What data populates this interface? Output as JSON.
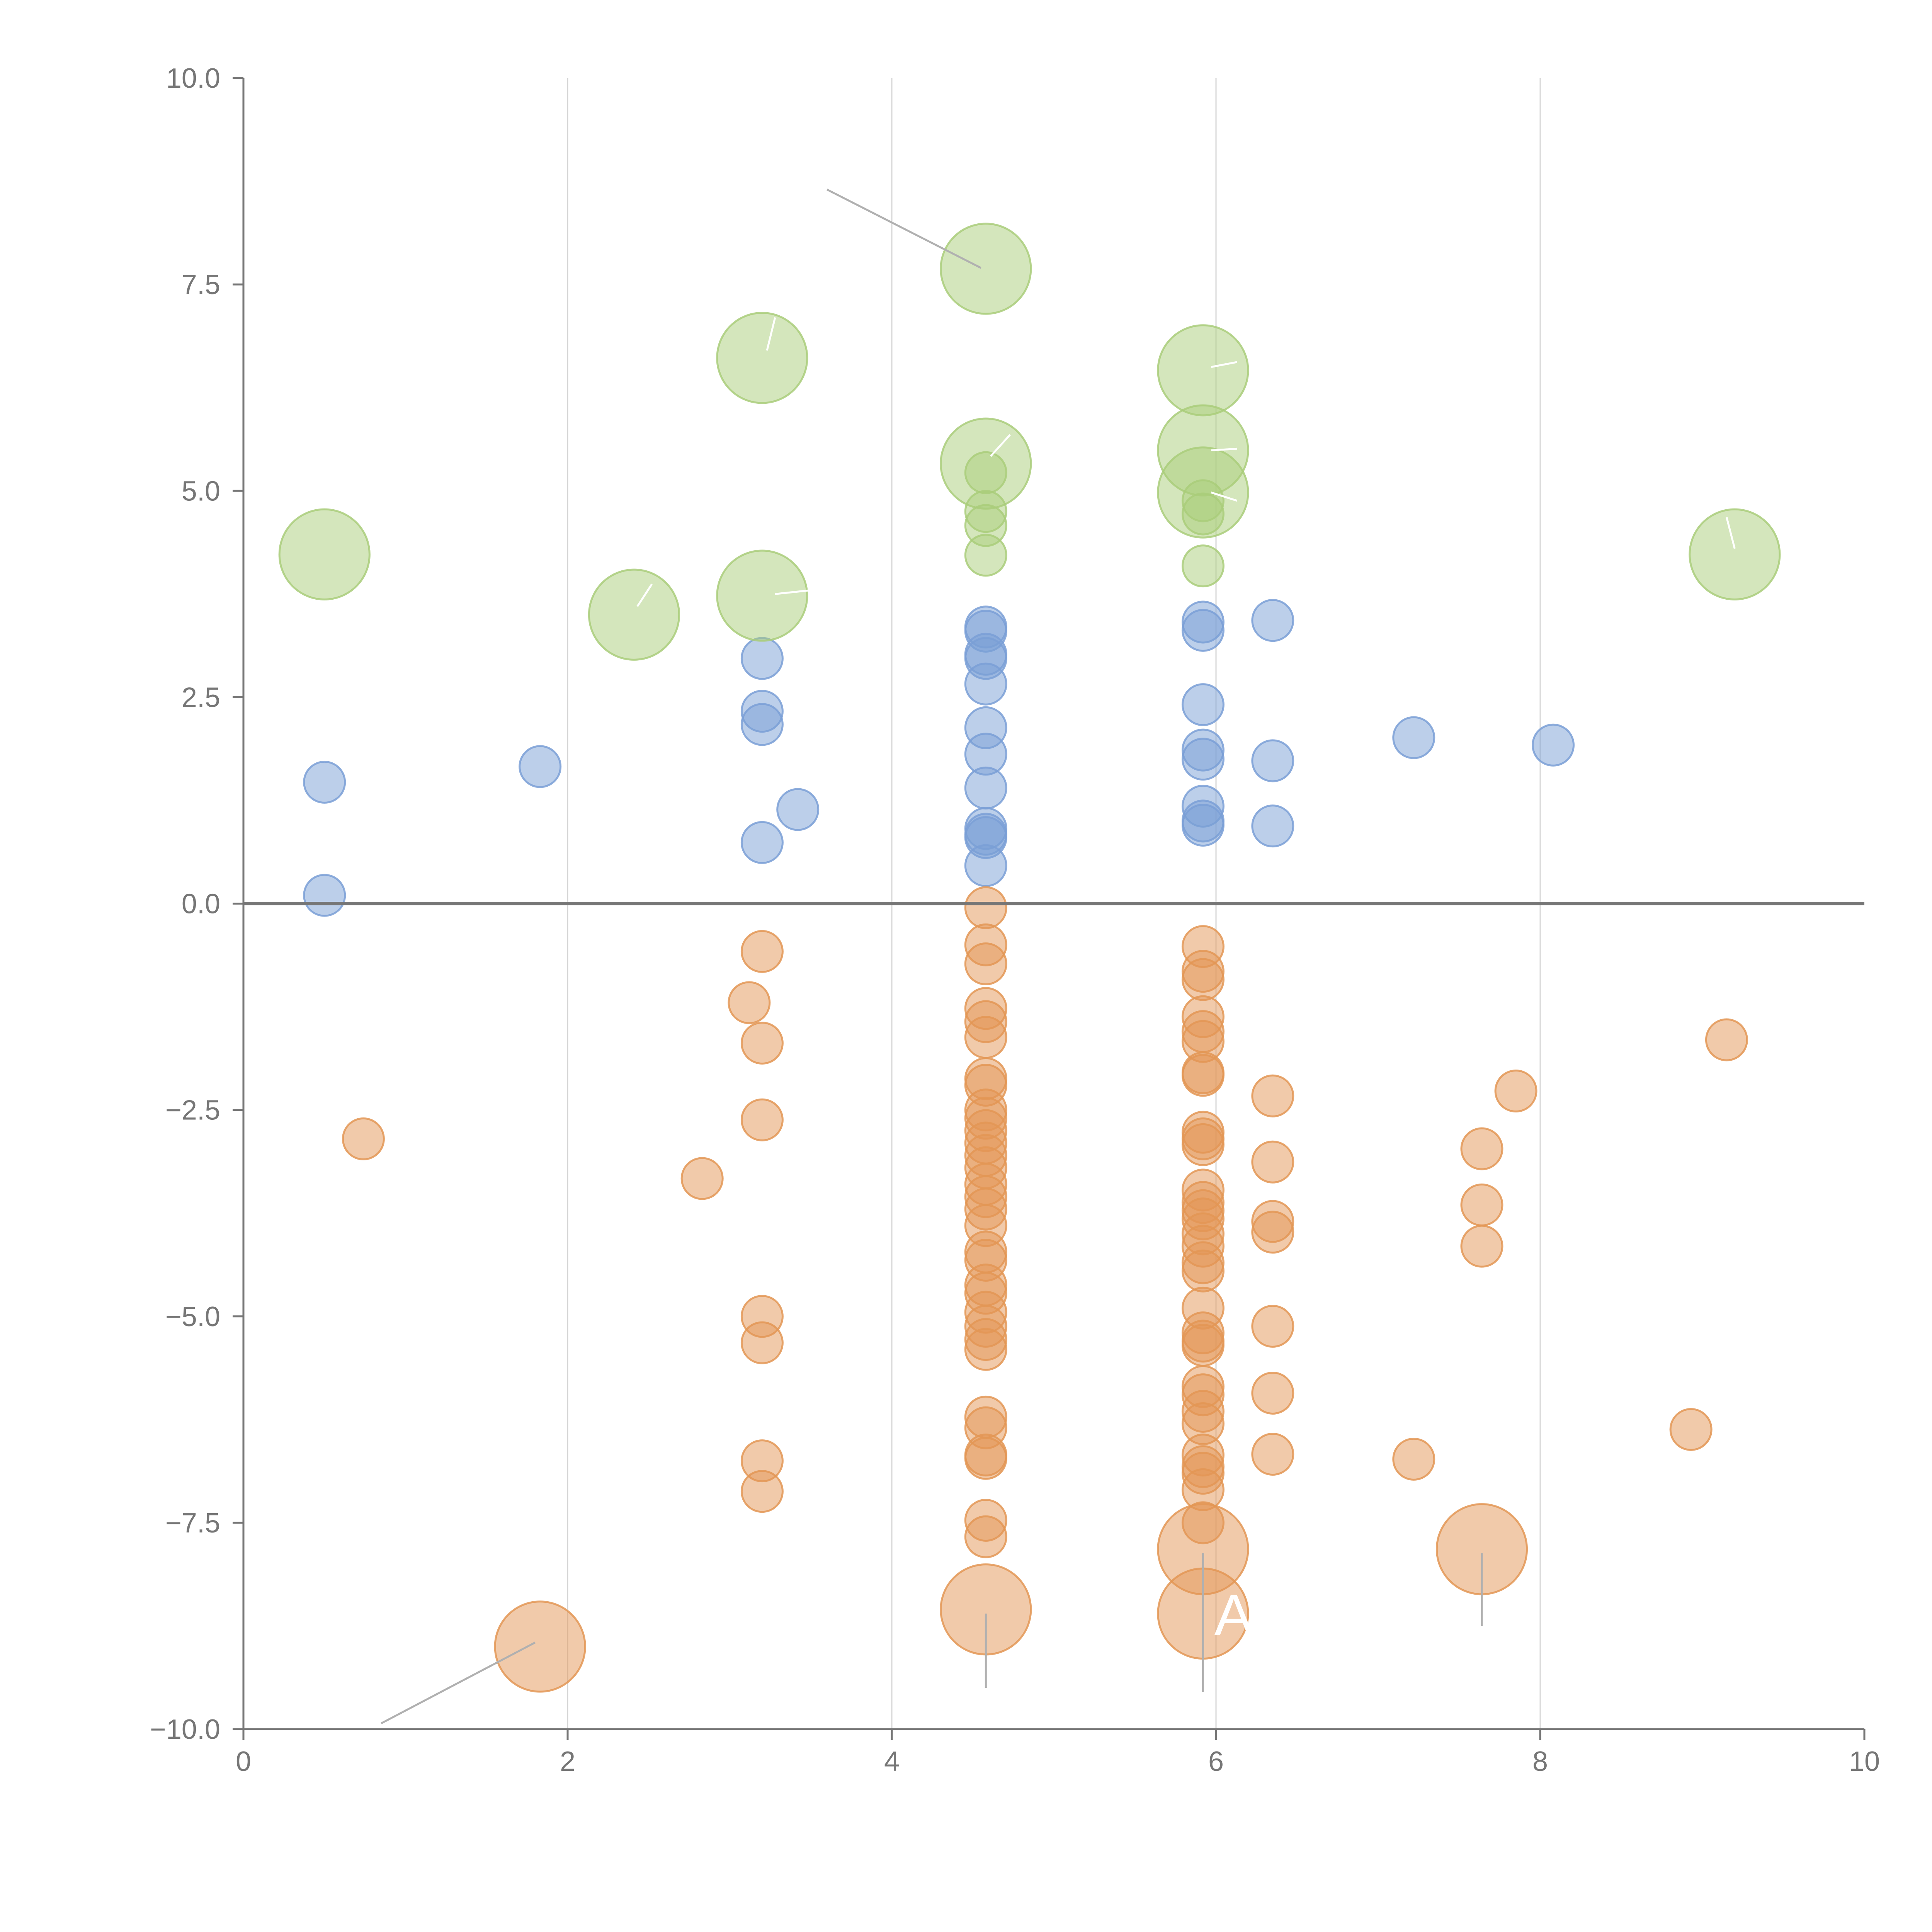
{
  "chart_data": {
    "type": "scatter",
    "title": "",
    "xlabel": "",
    "ylabel": "",
    "xlim": [
      0,
      10
    ],
    "ylim": [
      -10,
      10
    ],
    "x_ticks": [
      0,
      2,
      4,
      6,
      8,
      10
    ],
    "x_tick_labels": [
      "0",
      "2",
      "4",
      "6",
      "8",
      "10"
    ],
    "y_ticks": [
      10,
      7.5,
      5,
      2.5,
      0,
      -2.5,
      -5,
      -7.5,
      -10
    ],
    "y_tick_labels": [
      "10.0",
      "7.5",
      "5.0",
      "2.5",
      "0.0",
      "−2.5",
      "−5.0",
      "−7.5",
      "−10.0"
    ],
    "x_grid": [
      2,
      4,
      6,
      8
    ],
    "zero_line": 0,
    "colors": {
      "blue": "#7a9fd6",
      "orange": "#e39655",
      "green": "#a9cd7a",
      "axis": "#767676",
      "grid": "#d6d6d6",
      "annotation": "#ffffff",
      "leader": "#b0b0b0"
    },
    "series": [
      {
        "name": "blue",
        "color_key": "blue",
        "size": 1,
        "points": [
          [
            0.5,
            1.47
          ],
          [
            0.5,
            0.1
          ],
          [
            1.83,
            1.66
          ],
          [
            3.2,
            2.97
          ],
          [
            3.2,
            2.33
          ],
          [
            3.2,
            2.17
          ],
          [
            3.2,
            0.74
          ],
          [
            3.42,
            1.14
          ],
          [
            4.58,
            3.35
          ],
          [
            4.58,
            3.3
          ],
          [
            4.58,
            3.02
          ],
          [
            4.58,
            2.97
          ],
          [
            4.58,
            2.66
          ],
          [
            4.58,
            2.13
          ],
          [
            4.58,
            1.81
          ],
          [
            4.58,
            1.4
          ],
          [
            4.58,
            0.91
          ],
          [
            4.58,
            0.84
          ],
          [
            4.58,
            0.8
          ],
          [
            4.58,
            0.46
          ],
          [
            5.92,
            3.41
          ],
          [
            5.92,
            3.31
          ],
          [
            5.92,
            2.41
          ],
          [
            5.92,
            1.86
          ],
          [
            5.92,
            1.75
          ],
          [
            5.92,
            1.18
          ],
          [
            5.92,
            1.0
          ],
          [
            5.92,
            0.95
          ],
          [
            6.35,
            3.43
          ],
          [
            6.35,
            1.73
          ],
          [
            6.35,
            0.94
          ],
          [
            7.22,
            2.01
          ],
          [
            8.08,
            1.92
          ]
        ]
      },
      {
        "name": "orange",
        "color_key": "orange",
        "size": 1,
        "points": [
          [
            0.74,
            -2.85
          ],
          [
            2.83,
            -3.33
          ],
          [
            3.12,
            -1.2
          ],
          [
            3.2,
            -0.58
          ],
          [
            3.2,
            -1.69
          ],
          [
            3.2,
            -2.62
          ],
          [
            3.2,
            -5.0
          ],
          [
            3.2,
            -5.32
          ],
          [
            3.2,
            -6.75
          ],
          [
            3.2,
            -7.12
          ],
          [
            4.58,
            -0.05
          ],
          [
            4.58,
            -0.5
          ],
          [
            4.58,
            -0.73
          ],
          [
            4.58,
            -1.27
          ],
          [
            4.58,
            -1.43
          ],
          [
            4.58,
            -1.62
          ],
          [
            4.58,
            -2.12
          ],
          [
            4.58,
            -2.2
          ],
          [
            4.58,
            -2.5
          ],
          [
            4.58,
            -2.6
          ],
          [
            4.58,
            -2.75
          ],
          [
            4.58,
            -2.9
          ],
          [
            4.58,
            -3.05
          ],
          [
            4.58,
            -3.2
          ],
          [
            4.58,
            -3.4
          ],
          [
            4.58,
            -3.55
          ],
          [
            4.58,
            -3.7
          ],
          [
            4.58,
            -3.9
          ],
          [
            4.58,
            -4.22
          ],
          [
            4.58,
            -4.32
          ],
          [
            4.58,
            -4.62
          ],
          [
            4.58,
            -4.72
          ],
          [
            4.58,
            -4.95
          ],
          [
            4.58,
            -5.12
          ],
          [
            4.58,
            -5.28
          ],
          [
            4.58,
            -5.4
          ],
          [
            4.58,
            -6.22
          ],
          [
            4.58,
            -6.35
          ],
          [
            4.58,
            -6.68
          ],
          [
            4.58,
            -6.72
          ],
          [
            4.58,
            -7.47
          ],
          [
            4.58,
            -7.67
          ],
          [
            5.92,
            -0.52
          ],
          [
            5.92,
            -0.82
          ],
          [
            5.92,
            -0.92
          ],
          [
            5.92,
            -1.37
          ],
          [
            5.92,
            -1.55
          ],
          [
            5.92,
            -1.67
          ],
          [
            5.92,
            -2.05
          ],
          [
            5.92,
            -2.08
          ],
          [
            5.92,
            -2.77
          ],
          [
            5.92,
            -2.85
          ],
          [
            5.92,
            -2.92
          ],
          [
            5.92,
            -3.47
          ],
          [
            5.92,
            -3.62
          ],
          [
            5.92,
            -3.72
          ],
          [
            5.92,
            -3.82
          ],
          [
            5.92,
            -4.0
          ],
          [
            5.92,
            -4.15
          ],
          [
            5.92,
            -4.35
          ],
          [
            5.92,
            -4.45
          ],
          [
            5.92,
            -4.9
          ],
          [
            5.92,
            -5.2
          ],
          [
            5.92,
            -5.3
          ],
          [
            5.92,
            -5.35
          ],
          [
            5.92,
            -5.85
          ],
          [
            5.92,
            -5.95
          ],
          [
            5.92,
            -6.15
          ],
          [
            5.92,
            -6.3
          ],
          [
            5.92,
            -6.68
          ],
          [
            5.92,
            -6.82
          ],
          [
            5.92,
            -6.9
          ],
          [
            5.92,
            -7.1
          ],
          [
            5.92,
            -7.5
          ],
          [
            6.35,
            -2.33
          ],
          [
            6.35,
            -3.13
          ],
          [
            6.35,
            -3.85
          ],
          [
            6.35,
            -3.98
          ],
          [
            6.35,
            -5.12
          ],
          [
            6.35,
            -5.93
          ],
          [
            6.35,
            -6.67
          ],
          [
            7.22,
            -6.73
          ],
          [
            7.64,
            -2.97
          ],
          [
            7.64,
            -3.65
          ],
          [
            7.64,
            -4.15
          ],
          [
            7.85,
            -2.27
          ],
          [
            8.93,
            -6.37
          ],
          [
            9.15,
            -1.65
          ]
        ]
      },
      {
        "name": "green",
        "color_key": "green",
        "size": 1,
        "points": [
          [
            4.58,
            5.22
          ],
          [
            4.58,
            4.75
          ],
          [
            4.58,
            4.58
          ],
          [
            4.58,
            4.22
          ],
          [
            5.92,
            4.88
          ],
          [
            5.92,
            4.72
          ],
          [
            5.92,
            4.09
          ]
        ]
      },
      {
        "name": "large-green",
        "color_key": "green",
        "size": 2.2,
        "points": [
          [
            0.5,
            4.23
          ],
          [
            2.41,
            3.5
          ],
          [
            3.2,
            6.61
          ],
          [
            3.2,
            3.73
          ],
          [
            4.58,
            7.69
          ],
          [
            4.58,
            5.33
          ],
          [
            5.92,
            6.46
          ],
          [
            5.92,
            5.49
          ],
          [
            5.92,
            4.98
          ],
          [
            9.2,
            4.23
          ]
        ]
      },
      {
        "name": "large-orange",
        "color_key": "orange",
        "size": 2.2,
        "points": [
          [
            1.83,
            -9.0
          ],
          [
            4.58,
            -8.55
          ],
          [
            5.92,
            -7.82
          ],
          [
            5.92,
            -8.6
          ],
          [
            7.64,
            -7.82
          ]
        ]
      }
    ],
    "leader_lines": [
      {
        "color_key": "leader",
        "points": [
          [
            4.55,
            7.7
          ],
          [
            3.6,
            8.65
          ]
        ]
      },
      {
        "color_key": "leader",
        "points": [
          [
            1.8,
            -8.95
          ],
          [
            0.85,
            -9.93
          ]
        ]
      },
      {
        "color_key": "leader",
        "points": [
          [
            4.58,
            -8.6
          ],
          [
            4.58,
            -9.5
          ]
        ]
      },
      {
        "color_key": "leader",
        "points": [
          [
            5.92,
            -7.87
          ],
          [
            5.92,
            -9.55
          ]
        ]
      },
      {
        "color_key": "leader",
        "points": [
          [
            7.64,
            -7.87
          ],
          [
            7.64,
            -8.75
          ]
        ]
      },
      {
        "color_key": "annotation",
        "points": [
          [
            3.23,
            6.7
          ],
          [
            3.28,
            7.1
          ]
        ]
      },
      {
        "color_key": "annotation",
        "points": [
          [
            3.28,
            3.75
          ],
          [
            3.52,
            3.8
          ]
        ]
      },
      {
        "color_key": "annotation",
        "points": [
          [
            2.43,
            3.6
          ],
          [
            2.52,
            3.87
          ]
        ]
      },
      {
        "color_key": "annotation",
        "points": [
          [
            4.61,
            5.42
          ],
          [
            4.73,
            5.68
          ]
        ]
      },
      {
        "color_key": "annotation",
        "points": [
          [
            5.97,
            6.5
          ],
          [
            6.13,
            6.56
          ]
        ]
      },
      {
        "color_key": "annotation",
        "points": [
          [
            5.97,
            5.49
          ],
          [
            6.13,
            5.51
          ]
        ]
      },
      {
        "color_key": "annotation",
        "points": [
          [
            5.97,
            4.98
          ],
          [
            6.13,
            4.88
          ]
        ]
      },
      {
        "color_key": "annotation",
        "points": [
          [
            9.2,
            4.3
          ],
          [
            9.15,
            4.68
          ]
        ]
      }
    ],
    "annotations": [
      {
        "text": "A",
        "x": 5.99,
        "y": -8.6
      }
    ]
  }
}
